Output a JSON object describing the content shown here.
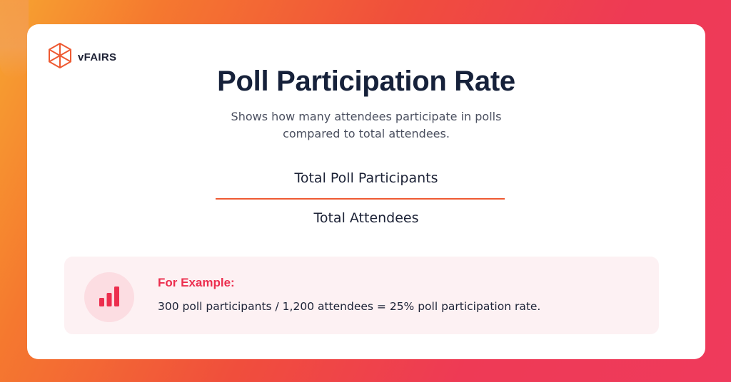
{
  "brand": {
    "name": "vFAIRS",
    "logo_icon": "hexagon-cube-logo",
    "accent_color": "#ee5a32"
  },
  "header": {
    "title": "Poll Participation Rate",
    "subtitle": "Shows how many attendees participate in polls compared to total attendees."
  },
  "formula": {
    "numerator": "Total Poll Participants",
    "denominator": "Total Attendees"
  },
  "example": {
    "icon": "bar-chart-icon",
    "label": "For Example:",
    "text": "300 poll participants / 1,200 attendees = 25% poll participation rate.",
    "label_color": "#ec2e4e"
  }
}
